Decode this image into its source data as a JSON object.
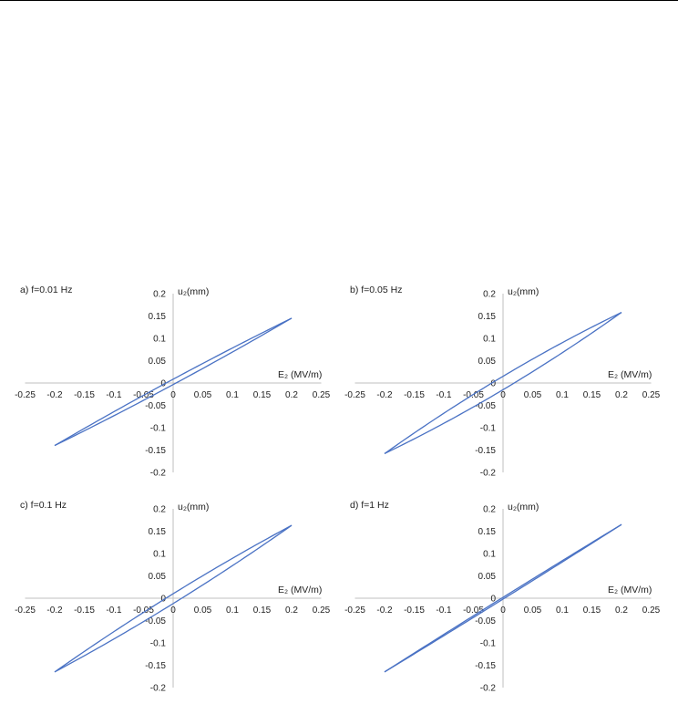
{
  "chart_data": [
    {
      "type": "line",
      "title": "a) f=0.01 Hz",
      "xlabel": "E₂ (MV/m)",
      "ylabel": "u₂(mm)",
      "xlim": [
        -0.25,
        0.25
      ],
      "ylim": [
        -0.2,
        0.2
      ],
      "x_ticks": [
        "-0.25",
        "-0.2",
        "-0.15",
        "-0.1",
        "-0.05",
        "0",
        "0.05",
        "0.1",
        "0.15",
        "0.2",
        "0.25"
      ],
      "y_ticks": [
        "0.2",
        "0.15",
        "0.1",
        "0.05",
        "0",
        "-0.05",
        "-0.1",
        "-0.15",
        "-0.2"
      ],
      "loop": {
        "x_amplitude": 0.2,
        "y_high": 0.145,
        "y_low": -0.14,
        "half_width_at_zero": 0.006
      },
      "grid": false,
      "legend": "none",
      "color": "#4a72c4"
    },
    {
      "type": "line",
      "title": "b) f=0.05 Hz",
      "xlabel": "E₂ (MV/m)",
      "ylabel": "u₂(mm)",
      "xlim": [
        -0.25,
        0.25
      ],
      "ylim": [
        -0.2,
        0.2
      ],
      "x_ticks": [
        "-0.25",
        "-0.2",
        "-0.15",
        "-0.1",
        "-0.05",
        "0",
        "0.05",
        "0.1",
        "0.15",
        "0.2",
        "0.25"
      ],
      "y_ticks": [
        "0.2",
        "0.15",
        "0.1",
        "0.05",
        "0",
        "-0.05",
        "-0.1",
        "-0.15",
        "-0.2"
      ],
      "loop": {
        "x_amplitude": 0.2,
        "y_high": 0.158,
        "y_low": -0.158,
        "half_width_at_zero": 0.015
      },
      "grid": false,
      "legend": "none",
      "color": "#4a72c4"
    },
    {
      "type": "line",
      "title": "c) f=0.1 Hz",
      "xlabel": "E₂ (MV/m)",
      "ylabel": "u₂(mm)",
      "xlim": [
        -0.25,
        0.25
      ],
      "ylim": [
        -0.2,
        0.2
      ],
      "x_ticks": [
        "-0.25",
        "-0.2",
        "-0.15",
        "-0.1",
        "-0.05",
        "0",
        "0.05",
        "0.1",
        "0.15",
        "0.2",
        "0.25"
      ],
      "y_ticks": [
        "0.2",
        "0.15",
        "0.1",
        "0.05",
        "0",
        "-0.05",
        "-0.1",
        "-0.15",
        "-0.2"
      ],
      "loop": {
        "x_amplitude": 0.2,
        "y_high": 0.163,
        "y_low": -0.165,
        "half_width_at_zero": 0.011
      },
      "grid": false,
      "legend": "none",
      "color": "#4a72c4"
    },
    {
      "type": "line",
      "title": "d) f=1 Hz",
      "xlabel": "E₂ (MV/m)",
      "ylabel": "u₂(mm)",
      "xlim": [
        -0.25,
        0.25
      ],
      "ylim": [
        -0.2,
        0.2
      ],
      "x_ticks": [
        "-0.25",
        "-0.2",
        "-0.15",
        "-0.1",
        "-0.05",
        "0",
        "0.05",
        "0.1",
        "0.15",
        "0.2",
        "0.25"
      ],
      "y_ticks": [
        "0.2",
        "0.15",
        "0.1",
        "0.05",
        "0",
        "-0.05",
        "-0.1",
        "-0.15",
        "-0.2"
      ],
      "loop": {
        "x_amplitude": 0.2,
        "y_high": 0.165,
        "y_low": -0.165,
        "half_width_at_zero": 0.002
      },
      "grid": false,
      "legend": "none",
      "color": "#4a72c4"
    }
  ]
}
